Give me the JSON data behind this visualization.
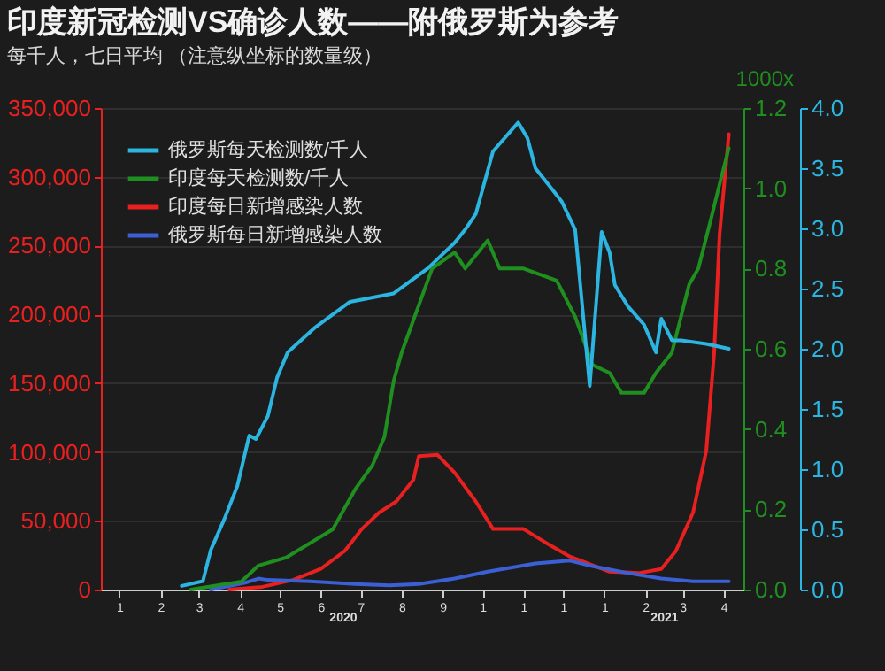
{
  "chart_data": {
    "type": "line",
    "title": "印度新冠检测VS确诊人数——附俄罗斯为参考",
    "subtitle": "每千人，七日平均 （注意纵坐标的数量级）",
    "y2label": "1000x",
    "xlim": [
      "2020-01-01",
      "2021-04-30"
    ],
    "xticks": [
      {
        "value": "2020-01-15",
        "label": "1"
      },
      {
        "value": "2020-02-15",
        "label": "2"
      },
      {
        "value": "2020-03-15",
        "label": "3"
      },
      {
        "value": "2020-04-15",
        "label": "4"
      },
      {
        "value": "2020-05-15",
        "label": "5"
      },
      {
        "value": "2020-06-15",
        "label": "6"
      },
      {
        "value": "2020-07-15",
        "label": "7"
      },
      {
        "value": "2020-08-15",
        "label": "8"
      },
      {
        "value": "2020-09-15",
        "label": "9"
      },
      {
        "value": "2020-10-15",
        "label": "1"
      },
      {
        "value": "2020-11-15",
        "label": "1"
      },
      {
        "value": "2020-12-15",
        "label": "1"
      },
      {
        "value": "2021-01-15",
        "label": "1"
      },
      {
        "value": "2021-02-15",
        "label": "2"
      },
      {
        "value": "2021-03-15",
        "label": "3"
      },
      {
        "value": "2021-04-15",
        "label": "4"
      }
    ],
    "ylim": [
      0,
      350000
    ],
    "yticks": [
      0,
      {
        "value": 50000,
        "label": "50,000"
      },
      {
        "value": 100000,
        "label": "100,000"
      },
      {
        "value": 150000,
        "label": "150,000"
      },
      {
        "value": 200000,
        "label": "200,000"
      },
      {
        "value": 250000,
        "label": "250,000"
      },
      {
        "value": 300000,
        "label": "300,000"
      },
      {
        "value": 350000,
        "label": "350,000"
      }
    ],
    "y2lim": [
      0,
      1.2
    ],
    "y2ticks": [
      {
        "value": 0,
        "label": "0.0"
      },
      0.2,
      0.4,
      0.6,
      0.8,
      {
        "value": 1,
        "label": "1.0"
      },
      1.2
    ],
    "y3lim": [
      0,
      4
    ],
    "y3ticks": [
      {
        "value": 0,
        "label": "0.0"
      },
      0.5,
      {
        "value": 1,
        "label": "1.0"
      },
      1.5,
      {
        "value": 2,
        "label": "2.0"
      },
      2.5,
      {
        "value": 3,
        "label": "3.0"
      },
      3.5,
      {
        "value": 4,
        "label": "4.0"
      }
    ],
    "grid": "y",
    "legend": "top left",
    "annotations": [
      "2020",
      "2021"
    ],
    "series": [
      {
        "name": "俄罗斯每天检测数/千人",
        "color": "#2bb5e0",
        "axis": "y3",
        "x": [
          "2020-03-02",
          "2020-03-18",
          "2020-03-24",
          "2020-04-03",
          "2020-04-13",
          "2020-04-22",
          "2020-04-27",
          "2020-05-06",
          "2020-05-13",
          "2020-05-21",
          "2020-06-11",
          "2020-07-07",
          "2020-08-09",
          "2020-09-04",
          "2020-09-24",
          "2020-10-02",
          "2020-10-10",
          "2020-10-23",
          "2020-11-11",
          "2020-11-18",
          "2020-11-24",
          "2020-12-07",
          "2020-12-14",
          "2020-12-24",
          "2021-01-04",
          "2021-01-13",
          "2021-01-19",
          "2021-01-23",
          "2021-02-02",
          "2021-02-14",
          "2021-02-23",
          "2021-02-27",
          "2021-03-07",
          "2021-03-14",
          "2021-04-02",
          "2021-04-19"
        ],
        "values": [
          0.03,
          0.07,
          0.33,
          0.58,
          0.86,
          1.28,
          1.25,
          1.44,
          1.76,
          1.97,
          2.18,
          2.39,
          2.46,
          2.67,
          2.88,
          2.99,
          3.12,
          3.64,
          3.88,
          3.75,
          3.5,
          3.32,
          3.22,
          2.99,
          1.69,
          2.97,
          2.8,
          2.53,
          2.35,
          2.2,
          1.97,
          2.25,
          2.07,
          2.07,
          2.04,
          2.0
        ]
      },
      {
        "name": "印度每天检测数/千人",
        "color": "#1f8f1f",
        "axis": "y2",
        "x": [
          "2020-03-09",
          "2020-03-28",
          "2020-04-16",
          "2020-04-29",
          "2020-05-20",
          "2020-06-24",
          "2020-07-11",
          "2020-07-24",
          "2020-08-02",
          "2020-08-09",
          "2020-08-15",
          "2020-09-07",
          "2020-09-24",
          "2020-10-02",
          "2020-10-19",
          "2020-10-28",
          "2020-11-15",
          "2020-12-10",
          "2020-12-24",
          "2021-01-06",
          "2021-01-19",
          "2021-01-28",
          "2021-02-14",
          "2021-02-23",
          "2021-03-07",
          "2021-03-20",
          "2021-03-27",
          "2021-04-06",
          "2021-04-12",
          "2021-04-19"
        ],
        "values": [
          0,
          0.01,
          0.02,
          0.06,
          0.08,
          0.15,
          0.25,
          0.31,
          0.38,
          0.52,
          0.59,
          0.8,
          0.84,
          0.8,
          0.87,
          0.8,
          0.8,
          0.77,
          0.68,
          0.56,
          0.54,
          0.49,
          0.49,
          0.54,
          0.59,
          0.76,
          0.8,
          0.93,
          1.01,
          1.1
        ]
      },
      {
        "name": "印度每日新增感染人数",
        "color": "#e82020",
        "axis": "y",
        "x": [
          "2020-04-07",
          "2020-05-02",
          "2020-05-25",
          "2020-06-15",
          "2020-07-03",
          "2020-07-16",
          "2020-07-29",
          "2020-08-11",
          "2020-08-24",
          "2020-08-28",
          "2020-09-11",
          "2020-09-24",
          "2020-10-10",
          "2020-10-23",
          "2020-11-15",
          "2020-12-02",
          "2020-12-20",
          "2021-01-19",
          "2021-02-10",
          "2021-02-27",
          "2021-03-10",
          "2021-03-23",
          "2021-04-02",
          "2021-04-08",
          "2021-04-12",
          "2021-04-19"
        ],
        "values": [
          0,
          2000,
          7000,
          15000,
          28000,
          44000,
          56000,
          64000,
          80000,
          97000,
          98000,
          85000,
          64000,
          44000,
          44000,
          34000,
          24000,
          13000,
          12000,
          15000,
          28000,
          56000,
          101000,
          173000,
          258000,
          331000
        ]
      },
      {
        "name": "俄罗斯每日新增感染人数",
        "color": "#3b5fd4",
        "axis": "y",
        "x": [
          "2020-03-24",
          "2020-04-19",
          "2020-04-29",
          "2020-05-06",
          "2020-06-07",
          "2020-07-11",
          "2020-08-06",
          "2020-08-28",
          "2020-09-24",
          "2020-10-19",
          "2020-11-24",
          "2020-12-20",
          "2021-01-06",
          "2021-02-02",
          "2021-02-27",
          "2021-03-23",
          "2021-04-19"
        ],
        "values": [
          0,
          5000,
          8000,
          7000,
          6000,
          4000,
          3000,
          4000,
          8000,
          13000,
          19000,
          21000,
          17000,
          12000,
          8000,
          6000,
          6000
        ]
      }
    ]
  }
}
